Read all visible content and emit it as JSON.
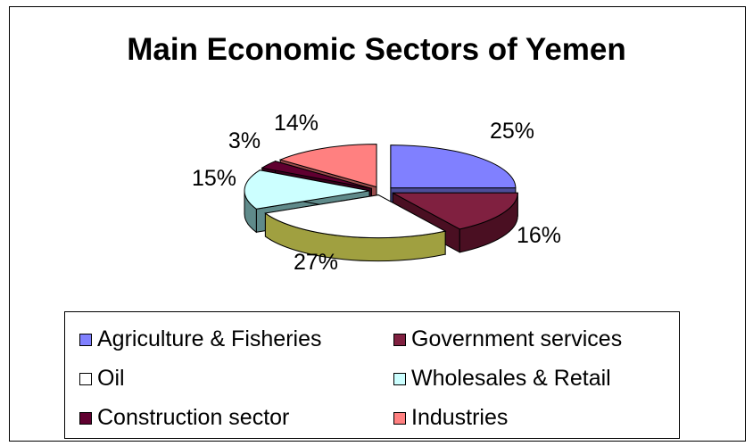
{
  "chart_data": {
    "type": "pie",
    "title": "Main Economic Sectors of Yemen",
    "three_d": true,
    "exploded": true,
    "legend_position": "bottom",
    "slices": [
      {
        "name": "Agriculture & Fisheries",
        "value": 25,
        "label": "25%",
        "color": "#8080FF",
        "side_color": "#4D4D99"
      },
      {
        "name": "Government services",
        "value": 16,
        "label": "16%",
        "color": "#802040",
        "side_color": "#4A0F22"
      },
      {
        "name": "Oil",
        "value": 27,
        "label": "27%",
        "color": "#FFFFFF",
        "side_color": "#A0A040"
      },
      {
        "name": "Wholesales & Retail",
        "value": 15,
        "label": "15%",
        "color": "#CCFFFF",
        "side_color": "#5F8A8A"
      },
      {
        "name": "Construction sector",
        "value": 3,
        "label": "3%",
        "color": "#600030",
        "side_color": "#3A001C"
      },
      {
        "name": "Industries",
        "value": 14,
        "label": "14%",
        "color": "#FF8080",
        "side_color": "#994C4C"
      }
    ]
  }
}
